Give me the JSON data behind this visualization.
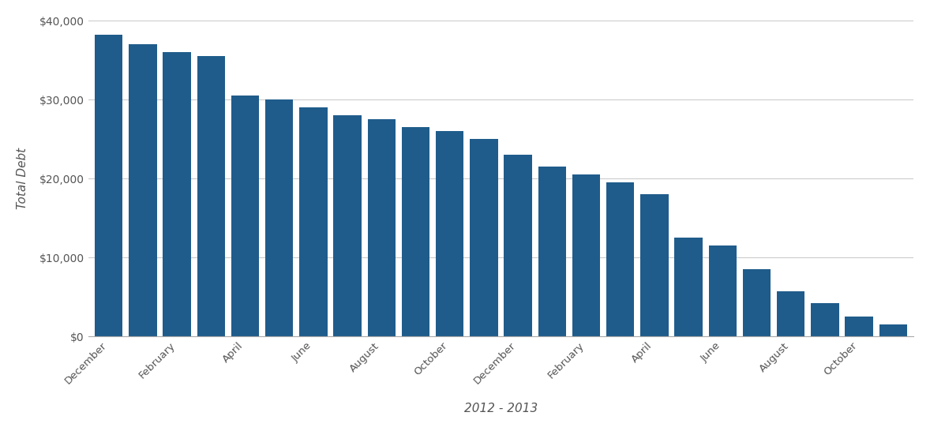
{
  "values": [
    38200,
    37000,
    36000,
    35500,
    30500,
    30000,
    29000,
    28000,
    27500,
    26500,
    26000,
    25000,
    23000,
    21500,
    20500,
    19500,
    18000,
    12500,
    11500,
    8500,
    5700,
    4200,
    2500,
    1500
  ],
  "x_tick_labels": [
    "December",
    "February",
    "April",
    "June",
    "August",
    "October",
    "December",
    "February",
    "April",
    "June",
    "August",
    "October"
  ],
  "bar_color": "#1F5C8B",
  "xlabel": "2012 - 2013",
  "ylabel": "Total Debt",
  "ylim": [
    0,
    40000
  ],
  "yticks": [
    0,
    10000,
    20000,
    30000,
    40000
  ],
  "background_color": "#ffffff",
  "grid_color": "#cccccc",
  "tick_label_color": "#555555",
  "axis_label_color": "#555555",
  "xlabel_fontsize": 11,
  "ylabel_fontsize": 11
}
